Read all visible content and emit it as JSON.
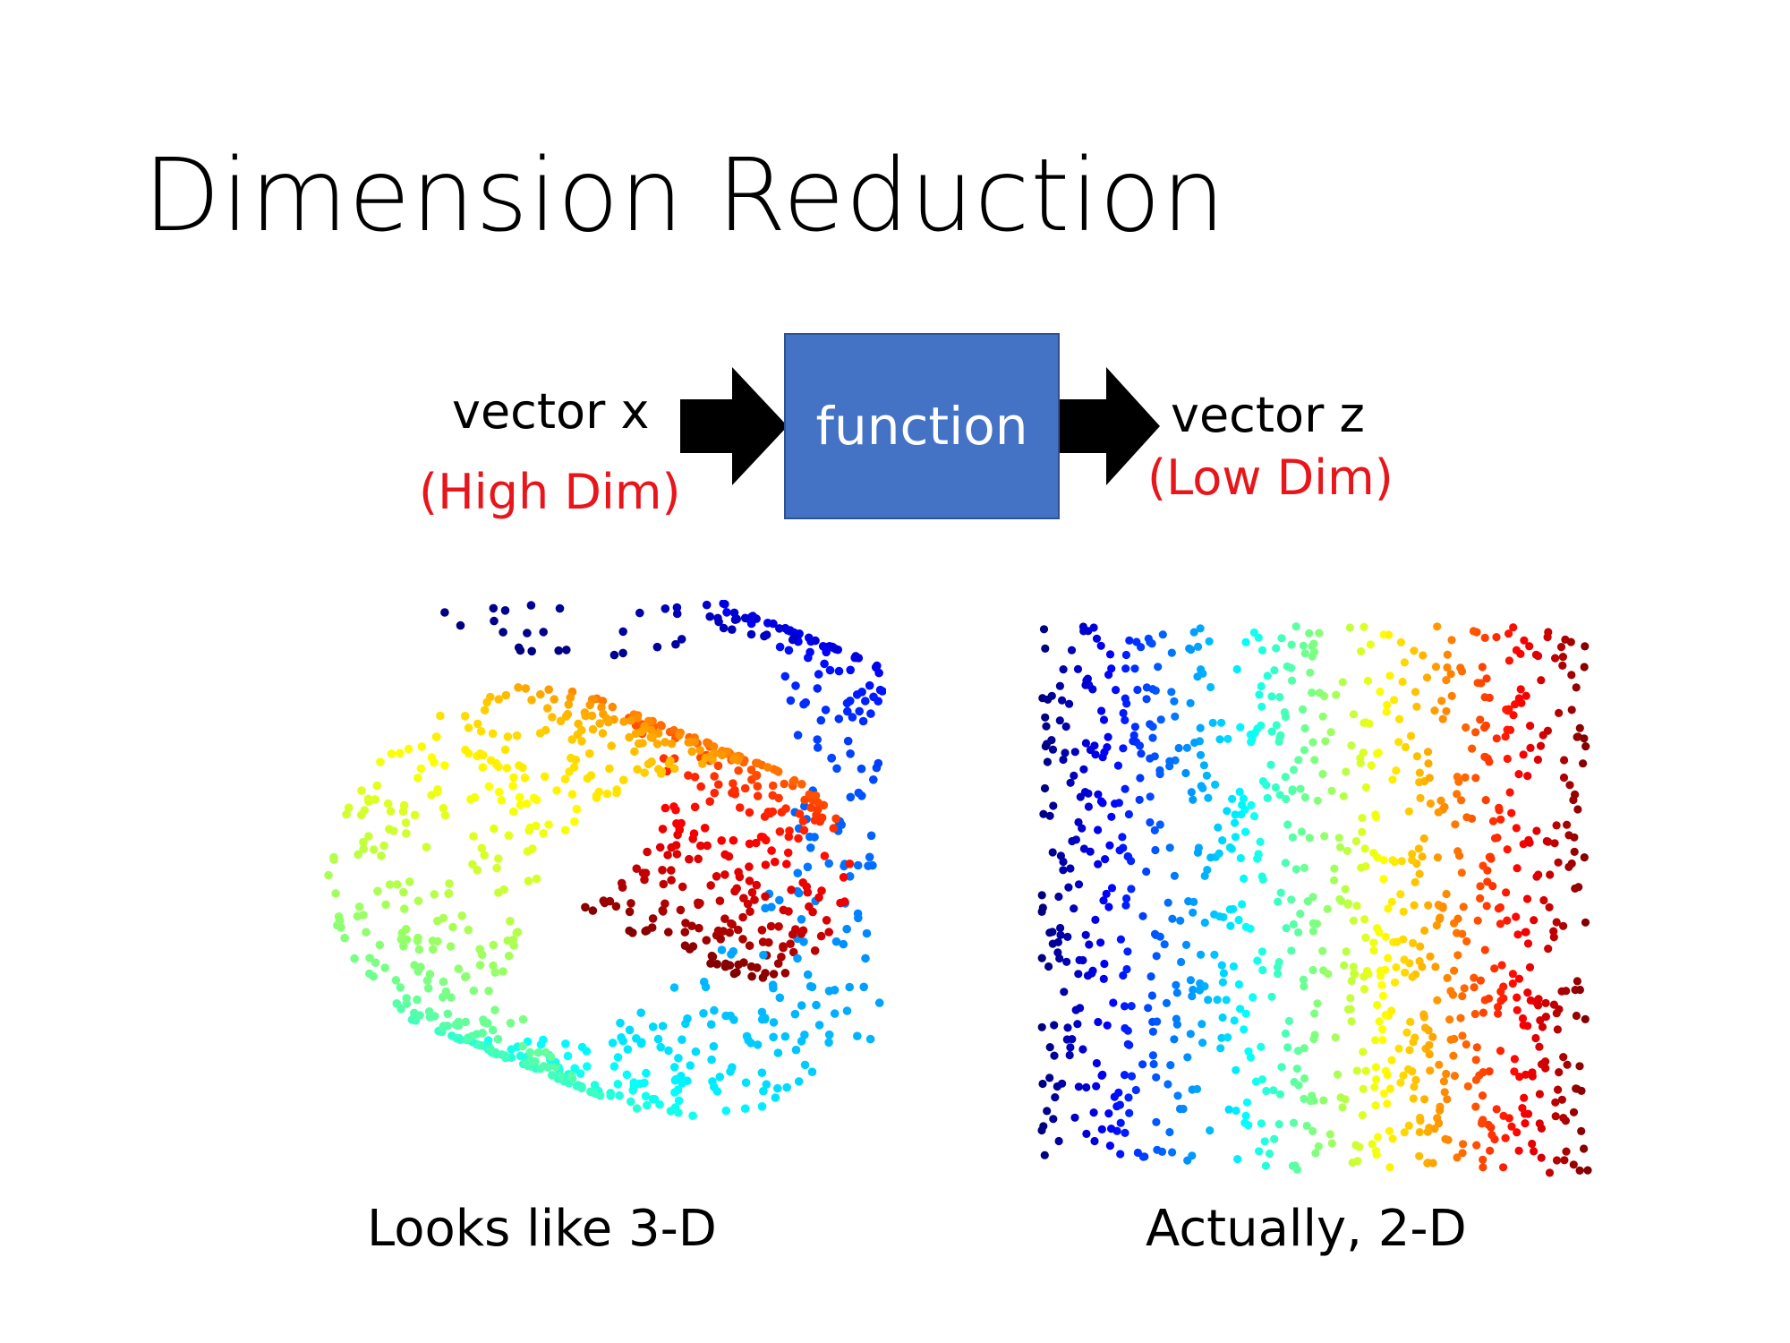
{
  "slide": {
    "title": "Dimension Reduction"
  },
  "pipeline": {
    "input_label": "vector x",
    "input_note": "(High Dim)",
    "function_label": "function",
    "output_label": "vector z",
    "output_note": "(Low Dim)",
    "colors": {
      "box_fill": "#4472c4",
      "note_text": "#e8161b",
      "arrow": "#000000"
    }
  },
  "left_figure": {
    "caption": "Looks like 3-D",
    "description_shape": "swiss-roll point cloud",
    "colormap": "jet"
  },
  "right_figure": {
    "caption": "Actually, 2-D",
    "description_shape": "unrolled rectangular point cloud",
    "colormap": "jet"
  }
}
